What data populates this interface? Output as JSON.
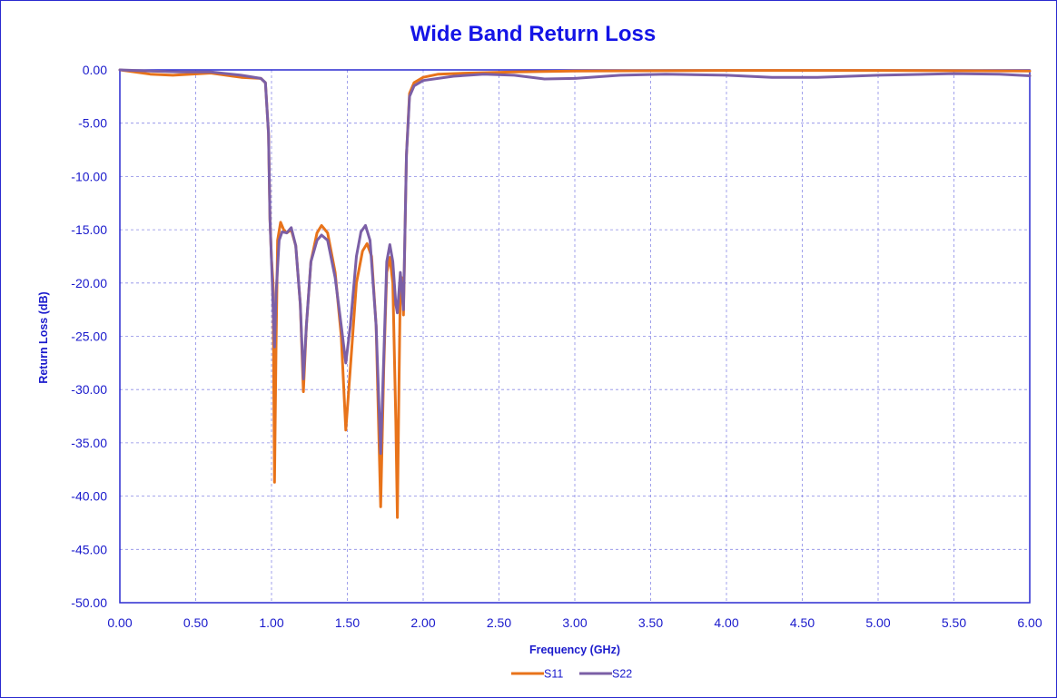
{
  "chart_data": {
    "type": "line",
    "title": "Wide Band Return Loss",
    "xlabel": "Frequency (GHz)",
    "ylabel": "Return Loss (dB)",
    "xlim": [
      0,
      6
    ],
    "ylim": [
      -50,
      0
    ],
    "x_ticks": [
      "0.00",
      "0.50",
      "1.00",
      "1.50",
      "2.00",
      "2.50",
      "3.00",
      "3.50",
      "4.00",
      "4.50",
      "5.00",
      "5.50",
      "6.00"
    ],
    "y_ticks": [
      "0.00",
      "-5.00",
      "-10.00",
      "-15.00",
      "-20.00",
      "-25.00",
      "-30.00",
      "-35.00",
      "-40.00",
      "-45.00",
      "-50.00"
    ],
    "grid": true,
    "legend_position": "bottom",
    "series": [
      {
        "name": "S11",
        "color": "#e8731a",
        "points": [
          [
            0,
            0
          ],
          [
            0.2,
            -0.4
          ],
          [
            0.35,
            -0.5
          ],
          [
            0.6,
            -0.3
          ],
          [
            0.8,
            -0.7
          ],
          [
            0.93,
            -0.8
          ],
          [
            0.96,
            -1.2
          ],
          [
            0.98,
            -6
          ],
          [
            0.99,
            -14
          ],
          [
            1.0,
            -17.8
          ],
          [
            1.01,
            -20
          ],
          [
            1.02,
            -38.7
          ],
          [
            1.03,
            -26
          ],
          [
            1.04,
            -16
          ],
          [
            1.06,
            -14.3
          ],
          [
            1.08,
            -15
          ],
          [
            1.1,
            -15.3
          ],
          [
            1.13,
            -15
          ],
          [
            1.16,
            -16.5
          ],
          [
            1.19,
            -22
          ],
          [
            1.21,
            -30.2
          ],
          [
            1.23,
            -24
          ],
          [
            1.26,
            -18
          ],
          [
            1.3,
            -15.3
          ],
          [
            1.33,
            -14.6
          ],
          [
            1.37,
            -15.3
          ],
          [
            1.42,
            -19
          ],
          [
            1.46,
            -25
          ],
          [
            1.49,
            -33.8
          ],
          [
            1.52,
            -28
          ],
          [
            1.56,
            -20
          ],
          [
            1.6,
            -17
          ],
          [
            1.63,
            -16.3
          ],
          [
            1.66,
            -17.5
          ],
          [
            1.69,
            -24
          ],
          [
            1.72,
            -41
          ],
          [
            1.74,
            -28
          ],
          [
            1.76,
            -19
          ],
          [
            1.78,
            -17.6
          ],
          [
            1.8,
            -20
          ],
          [
            1.82,
            -33
          ],
          [
            1.83,
            -42
          ],
          [
            1.84,
            -30
          ],
          [
            1.85,
            -20
          ],
          [
            1.86,
            -19.5
          ],
          [
            1.87,
            -23
          ],
          [
            1.89,
            -8
          ],
          [
            1.91,
            -2.2
          ],
          [
            1.94,
            -1.2
          ],
          [
            2.0,
            -0.7
          ],
          [
            2.1,
            -0.4
          ],
          [
            2.3,
            -0.3
          ],
          [
            2.6,
            -0.2
          ],
          [
            3.0,
            -0.1
          ],
          [
            4.0,
            -0.05
          ],
          [
            5.0,
            -0.05
          ],
          [
            6.0,
            -0.1
          ]
        ]
      },
      {
        "name": "S22",
        "color": "#7b5fa6",
        "points": [
          [
            0,
            0
          ],
          [
            0.2,
            -0.1
          ],
          [
            0.4,
            -0.2
          ],
          [
            0.6,
            -0.2
          ],
          [
            0.8,
            -0.5
          ],
          [
            0.93,
            -0.8
          ],
          [
            0.96,
            -1.2
          ],
          [
            0.98,
            -6
          ],
          [
            0.99,
            -14
          ],
          [
            1.0,
            -17.9
          ],
          [
            1.02,
            -26
          ],
          [
            1.03,
            -21
          ],
          [
            1.05,
            -16
          ],
          [
            1.07,
            -15.2
          ],
          [
            1.1,
            -15.3
          ],
          [
            1.13,
            -14.8
          ],
          [
            1.16,
            -16.5
          ],
          [
            1.19,
            -22
          ],
          [
            1.21,
            -29
          ],
          [
            1.23,
            -24
          ],
          [
            1.26,
            -18
          ],
          [
            1.3,
            -16
          ],
          [
            1.33,
            -15.5
          ],
          [
            1.37,
            -16
          ],
          [
            1.42,
            -19.5
          ],
          [
            1.46,
            -24
          ],
          [
            1.49,
            -27.5
          ],
          [
            1.52,
            -24
          ],
          [
            1.56,
            -17.5
          ],
          [
            1.59,
            -15.2
          ],
          [
            1.62,
            -14.6
          ],
          [
            1.65,
            -16
          ],
          [
            1.69,
            -24
          ],
          [
            1.72,
            -36
          ],
          [
            1.74,
            -27
          ],
          [
            1.76,
            -18
          ],
          [
            1.78,
            -16.4
          ],
          [
            1.8,
            -18
          ],
          [
            1.82,
            -22
          ],
          [
            1.83,
            -22.8
          ],
          [
            1.85,
            -19
          ],
          [
            1.87,
            -22.5
          ],
          [
            1.89,
            -8
          ],
          [
            1.91,
            -2.5
          ],
          [
            1.94,
            -1.5
          ],
          [
            2.0,
            -1.0
          ],
          [
            2.2,
            -0.6
          ],
          [
            2.4,
            -0.4
          ],
          [
            2.6,
            -0.5
          ],
          [
            2.8,
            -0.85
          ],
          [
            3.0,
            -0.8
          ],
          [
            3.3,
            -0.5
          ],
          [
            3.6,
            -0.4
          ],
          [
            4.0,
            -0.5
          ],
          [
            4.3,
            -0.7
          ],
          [
            4.6,
            -0.7
          ],
          [
            5.0,
            -0.5
          ],
          [
            5.5,
            -0.35
          ],
          [
            5.8,
            -0.4
          ],
          [
            6.0,
            -0.55
          ]
        ]
      }
    ]
  }
}
